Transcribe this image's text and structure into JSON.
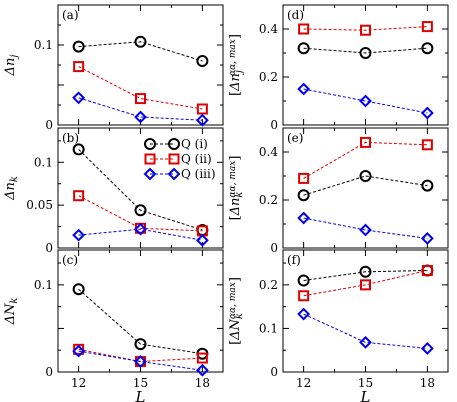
{
  "colors": {
    "i": "#000000",
    "ii": "#dd0000",
    "iii": "#0000ee"
  },
  "legend": [
    {
      "series": "i",
      "label": "Q (i)",
      "marker": "circle"
    },
    {
      "series": "ii",
      "label": "Q (ii)",
      "marker": "square"
    },
    {
      "series": "iii",
      "label": "Q (iii)",
      "marker": "diamond"
    }
  ],
  "chart_data": [
    {
      "type": "line",
      "title": "(a)",
      "ylabel": "Δn_j",
      "xlabel": "",
      "x": [
        12,
        15,
        18
      ],
      "xlim": [
        11,
        19
      ],
      "ylim": [
        0,
        0.15
      ],
      "yticks": [
        0,
        0.05,
        0.1
      ],
      "ytick_labels": [
        "0",
        "",
        "0.1"
      ],
      "series": [
        {
          "key": "i",
          "name": "Q (i)",
          "values": [
            0.098,
            0.104,
            0.08
          ]
        },
        {
          "key": "ii",
          "name": "Q (ii)",
          "values": [
            0.073,
            0.033,
            0.02
          ]
        },
        {
          "key": "iii",
          "name": "Q (iii)",
          "values": [
            0.034,
            0.01,
            0.006
          ]
        }
      ]
    },
    {
      "type": "line",
      "title": "(b)",
      "ylabel": "Δn_k",
      "xlabel": "",
      "x": [
        12,
        15,
        18
      ],
      "xlim": [
        11,
        19
      ],
      "ylim": [
        0,
        0.14
      ],
      "yticks": [
        0,
        0.05,
        0.1
      ],
      "ytick_labels": [
        "0",
        "0.05",
        "0.1"
      ],
      "series": [
        {
          "key": "i",
          "name": "Q (i)",
          "values": [
            0.115,
            0.044,
            0.021
          ]
        },
        {
          "key": "ii",
          "name": "Q (ii)",
          "values": [
            0.061,
            0.023,
            0.02
          ]
        },
        {
          "key": "iii",
          "name": "Q (iii)",
          "values": [
            0.015,
            0.022,
            0.009
          ]
        }
      ]
    },
    {
      "type": "line",
      "title": "(c)",
      "ylabel": "ΔN_k",
      "xlabel": "L",
      "x": [
        12,
        15,
        18
      ],
      "xlim": [
        11,
        19
      ],
      "ylim": [
        0,
        0.14
      ],
      "yticks": [
        0,
        0.05,
        0.1
      ],
      "ytick_labels": [
        "0",
        "",
        "0.1"
      ],
      "xticks": [
        12,
        15,
        18
      ],
      "series": [
        {
          "key": "i",
          "name": "Q (i)",
          "values": [
            0.095,
            0.032,
            0.021
          ]
        },
        {
          "key": "ii",
          "name": "Q (ii)",
          "values": [
            0.026,
            0.012,
            0.016
          ]
        },
        {
          "key": "iii",
          "name": "Q (iii)",
          "values": [
            0.024,
            0.012,
            0.002
          ]
        }
      ]
    },
    {
      "type": "line",
      "title": "(d)",
      "ylabel": "[Δn_j^{αα, max}]",
      "xlabel": "",
      "x": [
        12,
        15,
        18
      ],
      "xlim": [
        11,
        19
      ],
      "ylim": [
        0,
        0.5
      ],
      "yticks": [
        0,
        0.2,
        0.4
      ],
      "ytick_labels": [
        "0",
        "0.2",
        "0.4"
      ],
      "series": [
        {
          "key": "i",
          "name": "Q (i)",
          "values": [
            0.32,
            0.3,
            0.32
          ]
        },
        {
          "key": "ii",
          "name": "Q (ii)",
          "values": [
            0.4,
            0.395,
            0.41
          ]
        },
        {
          "key": "iii",
          "name": "Q (iii)",
          "values": [
            0.15,
            0.1,
            0.05
          ]
        }
      ]
    },
    {
      "type": "line",
      "title": "(e)",
      "ylabel": "[Δn_k^{αα, max}]",
      "xlabel": "",
      "x": [
        12,
        15,
        18
      ],
      "xlim": [
        11,
        19
      ],
      "ylim": [
        0,
        0.5
      ],
      "yticks": [
        0,
        0.2,
        0.4
      ],
      "ytick_labels": [
        "0",
        "0.2",
        "0.4"
      ],
      "series": [
        {
          "key": "i",
          "name": "Q (i)",
          "values": [
            0.22,
            0.3,
            0.26
          ]
        },
        {
          "key": "ii",
          "name": "Q (ii)",
          "values": [
            0.29,
            0.44,
            0.43
          ]
        },
        {
          "key": "iii",
          "name": "Q (iii)",
          "values": [
            0.125,
            0.075,
            0.04
          ]
        }
      ]
    },
    {
      "type": "line",
      "title": "(f)",
      "ylabel": "[ΔN_k^{αα, max}]",
      "xlabel": "L",
      "x": [
        12,
        15,
        18
      ],
      "xlim": [
        11,
        19
      ],
      "ylim": [
        0,
        0.28
      ],
      "yticks": [
        0,
        0.1,
        0.2
      ],
      "ytick_labels": [
        "0",
        "0.1",
        "0.2"
      ],
      "xticks": [
        12,
        15,
        18
      ],
      "series": [
        {
          "key": "i",
          "name": "Q (i)",
          "values": [
            0.21,
            0.23,
            0.233
          ]
        },
        {
          "key": "ii",
          "name": "Q (ii)",
          "values": [
            0.175,
            0.2,
            0.233
          ]
        },
        {
          "key": "iii",
          "name": "Q (iii)",
          "values": [
            0.133,
            0.068,
            0.054
          ]
        }
      ]
    }
  ]
}
